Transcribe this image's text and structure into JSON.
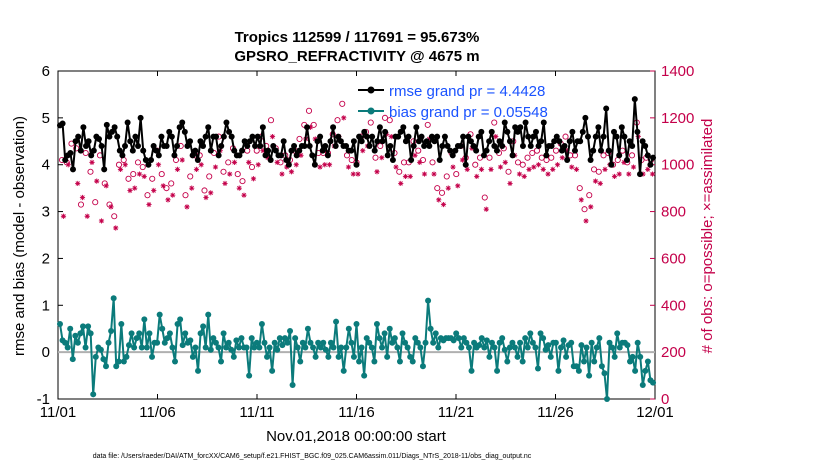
{
  "chart_data": {
    "type": "line",
    "title": "Tropics 112599 / 117691 = 95.673%",
    "subtitle": "GPSRO_REFRACTIVITY @ 4675 m",
    "xlabel": "Nov.01,2018 00:00:00 start",
    "ylabel": "rmse and bias (model - observation)",
    "ylabel_right": "# of obs: o=possible; ×=assimilated",
    "x_tick_labels": [
      "11/01",
      "11/06",
      "11/11",
      "11/16",
      "11/21",
      "11/26",
      "12/01"
    ],
    "y_ticks": [
      -1,
      0,
      1,
      2,
      3,
      4,
      5,
      6
    ],
    "y2_ticks": [
      0,
      200,
      400,
      600,
      800,
      1000,
      1200,
      1400
    ],
    "xlim": [
      0,
      30
    ],
    "ylim": [
      -1,
      6
    ],
    "y2lim": [
      0,
      1400
    ],
    "zero_line": 0,
    "colors": {
      "rmse": "#000000",
      "bias": "#0b7b7b",
      "counts": "#c4004a",
      "legend_text": "#1a53ff",
      "zero_line": "#b0b0b0"
    },
    "legend": [
      "rmse grand pr = 4.4428",
      "bias grand pr = 0.05548"
    ],
    "series": [
      {
        "name": "rmse",
        "values": [
          4.84,
          4.88,
          4.1,
          4.2,
          4.25,
          3.9,
          4.5,
          4.6,
          4.3,
          4.8,
          4.4,
          4.5,
          4.2,
          4.3,
          4.6,
          4.55,
          4.4,
          3.9,
          4.85,
          4.6,
          4.7,
          4.8,
          4.6,
          4.3,
          4.2,
          4.4,
          4.9,
          4.5,
          4.3,
          4.6,
          4.4,
          5.0,
          4.3,
          4.1,
          4.0,
          4.1,
          4.4,
          4.3,
          4.2,
          4.6,
          4.4,
          4.4,
          4.7,
          4.6,
          4.2,
          4.4,
          4.8,
          4.9,
          4.7,
          4.4,
          4.5,
          4.2,
          4.3,
          4.1,
          4.5,
          4.4,
          4.6,
          4.8,
          4.3,
          4.6,
          4.6,
          4.2,
          4.4,
          4.6,
          4.9,
          4.7,
          4.6,
          4.3,
          4.2,
          4.2,
          4.3,
          4.5,
          4.4,
          4.5,
          4.6,
          4.4,
          4.6,
          4.4,
          4.8,
          4.2,
          4.3,
          4.1,
          4.4,
          4.3,
          4.2,
          4.2,
          4.5,
          4.1,
          4.0,
          4.3,
          4.4,
          4.2,
          4.3,
          4.4,
          4.4,
          4.8,
          4.4,
          4.2,
          4.0,
          4.5,
          4.6,
          4.3,
          4.4,
          4.2,
          4.5,
          4.8,
          4.4,
          4.6,
          4.5,
          4.4,
          4.4,
          4.3,
          4.3,
          4.5,
          4.0,
          4.6,
          4.5,
          4.7,
          4.6,
          4.4,
          4.6,
          4.3,
          4.5,
          4.8,
          4.5,
          4.7,
          4.2,
          4.4,
          4.1,
          4.6,
          4.6,
          4.7,
          4.8,
          4.5,
          4.6,
          4.1,
          4.4,
          4.8,
          4.5,
          4.6,
          4.4,
          4.5,
          4.4,
          4.6,
          4.5,
          4.6,
          4.1,
          4.4,
          4.6,
          4.4,
          4.3,
          4.2,
          4.3,
          4.4,
          4.4,
          4.6,
          4.0,
          4.6,
          4.5,
          4.4,
          4.3,
          4.6,
          4.7,
          4.2,
          4.3,
          4.5,
          4.7,
          4.4,
          4.3,
          4.5,
          4.4,
          4.9,
          4.7,
          4.5,
          4.2,
          4.8,
          4.7,
          4.8,
          4.4,
          4.9,
          4.6,
          4.4,
          4.6,
          4.7,
          4.4,
          4.5,
          4.9,
          4.2,
          4.4,
          4.4,
          4.5,
          4.6,
          4.5,
          4.3,
          4.4,
          4.1,
          4.5,
          4.7,
          4.3,
          4.5,
          4.5,
          4.7,
          5.0,
          4.6,
          4.1,
          4.3,
          4.6,
          4.8,
          4.3,
          4.6,
          5.2,
          4.3,
          4.0,
          4.7,
          4.6,
          4.2,
          4.8,
          4.6,
          4.1,
          4.5,
          4.4,
          5.4,
          4.7,
          3.8,
          4.5,
          4.4,
          4.2,
          4.0,
          4.15
        ]
      },
      {
        "name": "bias",
        "values": [
          0.6,
          0.25,
          0.2,
          0.1,
          0.5,
          -0.15,
          0.35,
          0.2,
          0.4,
          0.55,
          0.1,
          0.55,
          0.4,
          -0.9,
          -0.1,
          0.1,
          0.05,
          -0.15,
          -0.3,
          0.2,
          0.45,
          1.15,
          -0.3,
          -0.2,
          0.6,
          -0.2,
          -0.1,
          0.15,
          0.4,
          0.1,
          0.3,
          0.4,
          0.1,
          0.7,
          0.1,
          0.4,
          -0.1,
          0.2,
          0.2,
          0.8,
          0.5,
          0.2,
          0.3,
          0.4,
          0.1,
          -0.2,
          0.6,
          0.7,
          0.15,
          0.4,
          0.2,
          0.25,
          -0.1,
          0.1,
          -0.4,
          0.4,
          0.55,
          0.1,
          0.8,
          0.05,
          0.3,
          0.2,
          0.1,
          -0.2,
          0.4,
          0.1,
          0.2,
          0.05,
          -0.1,
          0.25,
          0.1,
          0.3,
          0.1,
          0.1,
          -0.5,
          0.3,
          0.1,
          0.2,
          0.1,
          0.6,
          0.2,
          -0.1,
          0.1,
          -0.4,
          0.2,
          0.05,
          0.3,
          0.15,
          0.3,
          0.2,
          0.45,
          -0.7,
          0.3,
          0.1,
          -0.2,
          0.2,
          0.1,
          0.5,
          0.2,
          0.1,
          -0.1,
          0.2,
          0.1,
          0.2,
          0.05,
          -0.1,
          0.2,
          0.1,
          0.65,
          -0.1,
          0.1,
          -0.4,
          0.1,
          0.5,
          0.2,
          -0.1,
          0.6,
          -0.2,
          0.1,
          -0.5,
          0.3,
          0.2,
          0.1,
          -0.2,
          0.6,
          0.3,
          0.1,
          0.4,
          -0.1,
          0.5,
          0.2,
          0.3,
          0.1,
          -0.2,
          0.4,
          0.2,
          0.1,
          -0.1,
          -0.2,
          0.3,
          0.2,
          0.1,
          -0.3,
          0.2,
          1.1,
          0.5,
          0.2,
          0.4,
          0.1,
          0.3,
          0.25,
          0.3,
          0.3,
          0.3,
          0.25,
          0.4,
          0.3,
          0.1,
          0.3,
          0.2,
          0.1,
          -0.4,
          0.2,
          0.1,
          0.15,
          0.3,
          0.1,
          0.25,
          -0.1,
          0.2,
          0.1,
          -0.4,
          0.2,
          0.3,
          0.05,
          -0.2,
          0.1,
          0.2,
          0.1,
          -0.1,
          0.2,
          -0.2,
          0.3,
          0.1,
          0.4,
          0.2,
          0.1,
          -0.35,
          0.4,
          0.3,
          0.05,
          0.15,
          -0.1,
          0.2,
          0.2,
          -0.4,
          0.1,
          0.25,
          -0.1,
          0.15,
          0.2,
          -0.3,
          -0.3,
          -0.4,
          0.15,
          -0.2,
          0.1,
          -0.5,
          0.2,
          -0.2,
          0.1,
          0.3,
          -0.3,
          -0.45,
          -1.0,
          0.2,
          0.1,
          -0.1,
          0.4,
          0.1,
          0.2,
          0.2,
          0.15,
          -0.2,
          -0.1,
          -0.4,
          0.2,
          -0.1,
          -0.7,
          -0.4,
          -0.2,
          -0.6,
          -0.65
        ]
      },
      {
        "name": "possible",
        "values": [
          1020,
          1010,
          1090,
          1070,
          830,
          1050,
          970,
          840,
          1040,
          920,
          830,
          780,
          1000,
          1020,
          940,
          960,
          1010,
          990,
          870,
          940,
          1060,
          960,
          900,
          920,
          1020,
          1080,
          870,
          950,
          1040,
          1040,
          890,
          950,
          1050,
          1120,
          970,
          1010,
          1070,
          960,
          930,
          1060,
          990,
          1060,
          1120,
          1080,
          1190,
          1070,
          1010,
          1040,
          1020,
          1060,
          1110,
          1170,
          1230,
          1170,
          1050,
          1050,
          1050,
          1130,
          1190,
          1260,
          1040,
          1020,
          1010,
          1120,
          1140,
          1180,
          1030,
          1080,
          1200,
          1190,
          1050,
          970,
          1010,
          1010,
          1100,
          1060,
          1020,
          1170,
          1010,
          900,
          880,
          950,
          1050,
          960,
          1080,
          1030,
          1130,
          1000,
          1030,
          860,
          1030,
          1180,
          1050,
          1070,
          970,
          1100,
          1010,
          1000,
          1030,
          1050,
          1060,
          1030,
          1020,
          1030,
          1060,
          1090,
          1120,
          1040,
          1040,
          900,
          810,
          870,
          980,
          970,
          1040,
          1050,
          1000,
          1020,
          1060,
          1010,
          1040,
          1180,
          1020,
          1030,
          1020
        ]
      },
      {
        "name": "assimilated",
        "values": [
          780,
          1000,
          980,
          920,
          860,
          780,
          1010,
          930,
          760,
          910,
          820,
          730,
          980,
          1000,
          890,
          900,
          960,
          950,
          830,
          890,
          1000,
          910,
          850,
          870,
          980,
          1020,
          820,
          900,
          980,
          1000,
          860,
          880,
          990,
          1060,
          920,
          960,
          1010,
          900,
          870,
          1010,
          940,
          1000,
          1060,
          1030,
          1120,
          1010,
          960,
          990,
          970,
          1000,
          1040,
          1110,
          1160,
          1110,
          990,
          1000,
          1000,
          1080,
          1120,
          1200,
          990,
          960,
          960,
          1060,
          1080,
          1120,
          970,
          1030,
          1130,
          1120,
          990,
          920,
          950,
          950,
          1040,
          1010,
          960,
          1110,
          960,
          850,
          830,
          900,
          990,
          910,
          1020,
          980,
          1070,
          950,
          980,
          810,
          980,
          1120,
          990,
          1010,
          920,
          1040,
          960,
          950,
          980,
          990,
          1000,
          980,
          960,
          980,
          1000,
          1030,
          1060,
          990,
          980,
          850,
          760,
          820,
          930,
          920,
          980,
          1000,
          950,
          960,
          1010,
          960,
          990,
          1120,
          960,
          980,
          960
        ]
      }
    ]
  },
  "footer": "data file: /Users/raeder/DAI/ATM_forcXX/CAM6_setup/f.e21.FHIST_BGC.f09_025.CAM6assim.011/Diags_NTrS_2018-11/obs_diag_output.nc"
}
